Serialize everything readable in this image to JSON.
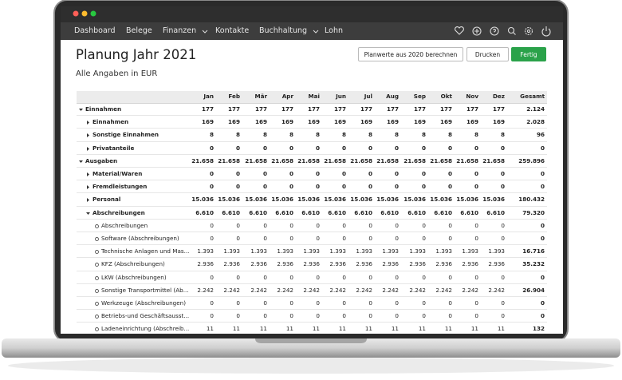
{
  "nav": {
    "items": [
      "Dashboard",
      "Belege",
      "Finanzen",
      "Kontakte",
      "Buchhaltung",
      "Lohn"
    ]
  },
  "header": {
    "title": "Planung Jahr 2021",
    "subtitle": "Alle Angaben in EUR"
  },
  "buttons": [
    "Planwerte aus 2020 berechnen",
    "Drucken",
    "Fertig"
  ],
  "table": {
    "columns": [
      "Jan",
      "Feb",
      "Mär",
      "Apr",
      "Mai",
      "Jun",
      "Jul",
      "Aug",
      "Sep",
      "Okt",
      "Nov",
      "Dez",
      "Gesamt"
    ],
    "rows": [
      {
        "label": "Einnahmen",
        "values": [
          "177",
          "177",
          "177",
          "177",
          "177",
          "177",
          "177",
          "177",
          "177",
          "177",
          "177",
          "177"
        ],
        "total": "2.124"
      },
      {
        "label": "Einnahmen",
        "values": [
          "169",
          "169",
          "169",
          "169",
          "169",
          "169",
          "169",
          "169",
          "169",
          "169",
          "169",
          "169"
        ],
        "total": "2.028"
      },
      {
        "label": "Sonstige Einnahmen",
        "values": [
          "8",
          "8",
          "8",
          "8",
          "8",
          "8",
          "8",
          "8",
          "8",
          "8",
          "8",
          "8"
        ],
        "total": "96"
      },
      {
        "label": "Privatanteile",
        "values": [
          "0",
          "0",
          "0",
          "0",
          "0",
          "0",
          "0",
          "0",
          "0",
          "0",
          "0",
          "0"
        ],
        "total": "0"
      },
      {
        "label": "Ausgaben",
        "values": [
          "21.658",
          "21.658",
          "21.658",
          "21.658",
          "21.658",
          "21.658",
          "21.658",
          "21.658",
          "21.658",
          "21.658",
          "21.658",
          "21.658"
        ],
        "total": "259.896"
      },
      {
        "label": "Material/Waren",
        "values": [
          "0",
          "0",
          "0",
          "0",
          "0",
          "0",
          "0",
          "0",
          "0",
          "0",
          "0",
          "0"
        ],
        "total": "0"
      },
      {
        "label": "Fremdleistungen",
        "values": [
          "0",
          "0",
          "0",
          "0",
          "0",
          "0",
          "0",
          "0",
          "0",
          "0",
          "0",
          "0"
        ],
        "total": "0"
      },
      {
        "label": "Personal",
        "values": [
          "15.036",
          "15.036",
          "15.036",
          "15.036",
          "15.036",
          "15.036",
          "15.036",
          "15.036",
          "15.036",
          "15.036",
          "15.036",
          "15.036"
        ],
        "total": "180.432"
      },
      {
        "label": "Abschreibungen",
        "values": [
          "6.610",
          "6.610",
          "6.610",
          "6.610",
          "6.610",
          "6.610",
          "6.610",
          "6.610",
          "6.610",
          "6.610",
          "6.610",
          "6.610"
        ],
        "total": "79.320"
      },
      {
        "label": "Abschreibungen",
        "values": [
          "0",
          "0",
          "0",
          "0",
          "0",
          "0",
          "0",
          "0",
          "0",
          "0",
          "0",
          "0"
        ],
        "total": "0"
      },
      {
        "label": "Software (Abschreibungen)",
        "values": [
          "0",
          "0",
          "0",
          "0",
          "0",
          "0",
          "0",
          "0",
          "0",
          "0",
          "0",
          "0"
        ],
        "total": "0"
      },
      {
        "label": "Technische Anlagen und Mas...",
        "values": [
          "1.393",
          "1.393",
          "1.393",
          "1.393",
          "1.393",
          "1.393",
          "1.393",
          "1.393",
          "1.393",
          "1.393",
          "1.393",
          "1.393"
        ],
        "total": "16.716"
      },
      {
        "label": "KFZ (Abschreibungen)",
        "values": [
          "2.936",
          "2.936",
          "2.936",
          "2.936",
          "2.936",
          "2.936",
          "2.936",
          "2.936",
          "2.936",
          "2.936",
          "2.936",
          "2.936"
        ],
        "total": "35.232"
      },
      {
        "label": "LKW (Abschreibungen)",
        "values": [
          "0",
          "0",
          "0",
          "0",
          "0",
          "0",
          "0",
          "0",
          "0",
          "0",
          "0",
          "0"
        ],
        "total": "0"
      },
      {
        "label": "Sonstige Transportmittel (Ab...",
        "values": [
          "2.242",
          "2.242",
          "2.242",
          "2.242",
          "2.242",
          "2.242",
          "2.242",
          "2.242",
          "2.242",
          "2.242",
          "2.242",
          "2.242"
        ],
        "total": "26.904"
      },
      {
        "label": "Werkzeuge (Abschreibungen)",
        "values": [
          "0",
          "0",
          "0",
          "0",
          "0",
          "0",
          "0",
          "0",
          "0",
          "0",
          "0",
          "0"
        ],
        "total": "0"
      },
      {
        "label": "Betriebs-und Geschäftsausst...",
        "values": [
          "0",
          "0",
          "0",
          "0",
          "0",
          "0",
          "0",
          "0",
          "0",
          "0",
          "0",
          "0"
        ],
        "total": "0"
      },
      {
        "label": "Ladeneinrichtung (Abschreib...",
        "values": [
          "11",
          "11",
          "11",
          "11",
          "11",
          "11",
          "11",
          "11",
          "11",
          "11",
          "11",
          "11"
        ],
        "total": "132"
      }
    ]
  }
}
